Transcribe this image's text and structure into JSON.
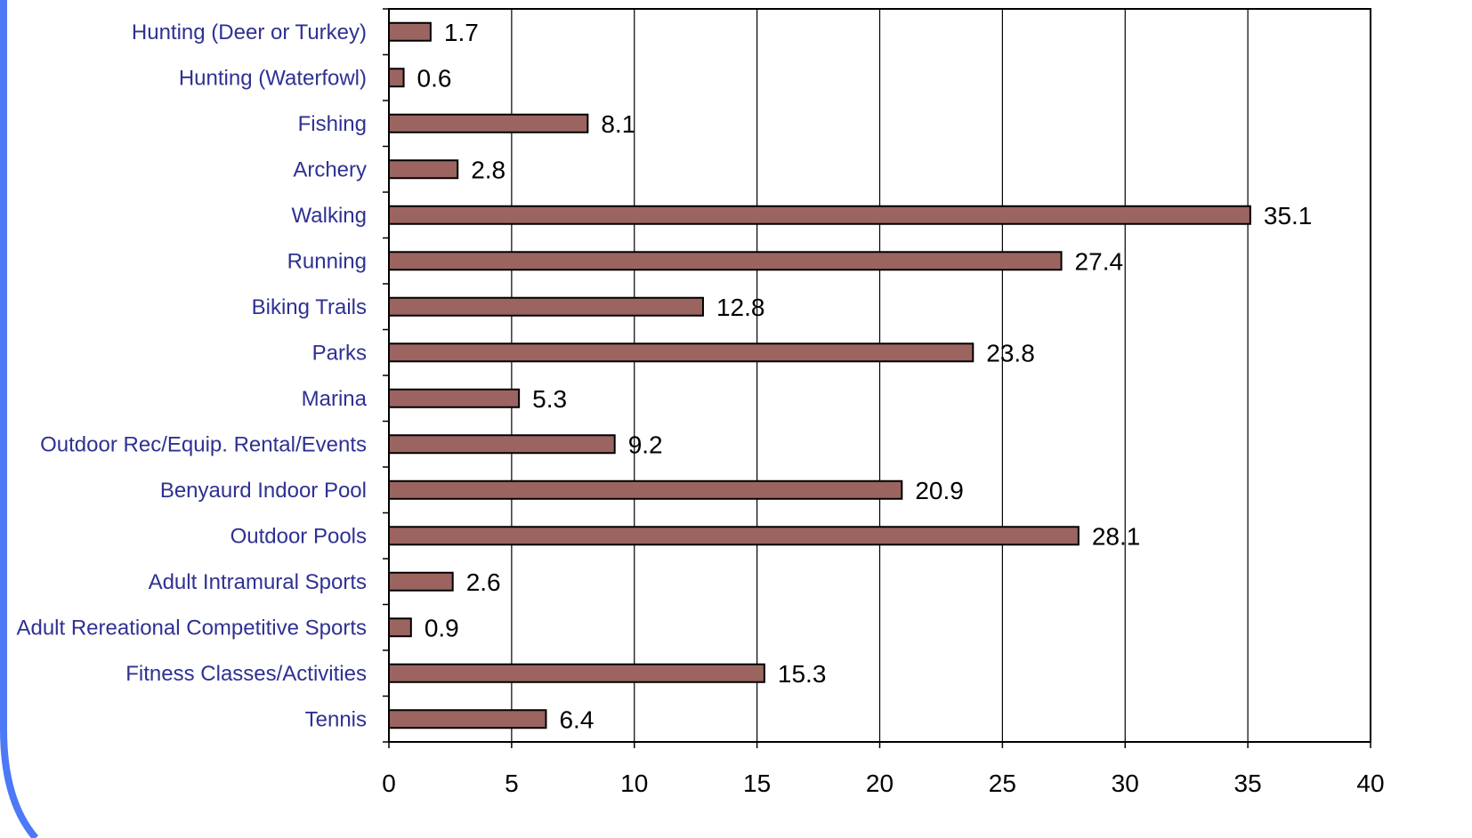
{
  "colors": {
    "bar_fill": "#9b6460",
    "bar_stroke": "#000000",
    "category_label": "#2e3192",
    "frame_accent": "#4d79f6"
  },
  "chart_data": {
    "type": "bar",
    "orientation": "horizontal",
    "title": "",
    "xlabel": "",
    "ylabel": "",
    "xlim": [
      0,
      40
    ],
    "x_ticks": [
      0,
      5,
      10,
      15,
      20,
      25,
      30,
      35,
      40
    ],
    "grid": "vertical",
    "legend": "none",
    "categories": [
      "Hunting (Deer or Turkey)",
      "Hunting (Waterfowl)",
      "Fishing",
      "Archery",
      "Walking",
      "Running",
      "Biking Trails",
      "Parks",
      "Marina",
      "Outdoor Rec/Equip. Rental/Events",
      "Benyaurd Indoor Pool",
      "Outdoor Pools",
      "Adult Intramural Sports",
      "Adult Rereational Competitive Sports",
      "Fitness Classes/Activities",
      "Tennis"
    ],
    "values": [
      1.7,
      0.6,
      8.1,
      2.8,
      35.1,
      27.4,
      12.8,
      23.8,
      5.3,
      9.2,
      20.9,
      28.1,
      2.6,
      0.9,
      15.3,
      6.4
    ],
    "value_labels": [
      "1.7",
      "0.6",
      "8.1",
      "2.8",
      "35.1",
      "27.4",
      "12.8",
      "23.8",
      "5.3",
      "9.2",
      "20.9",
      "28.1",
      "2.6",
      "0.9",
      "15.3",
      "6.4"
    ]
  }
}
